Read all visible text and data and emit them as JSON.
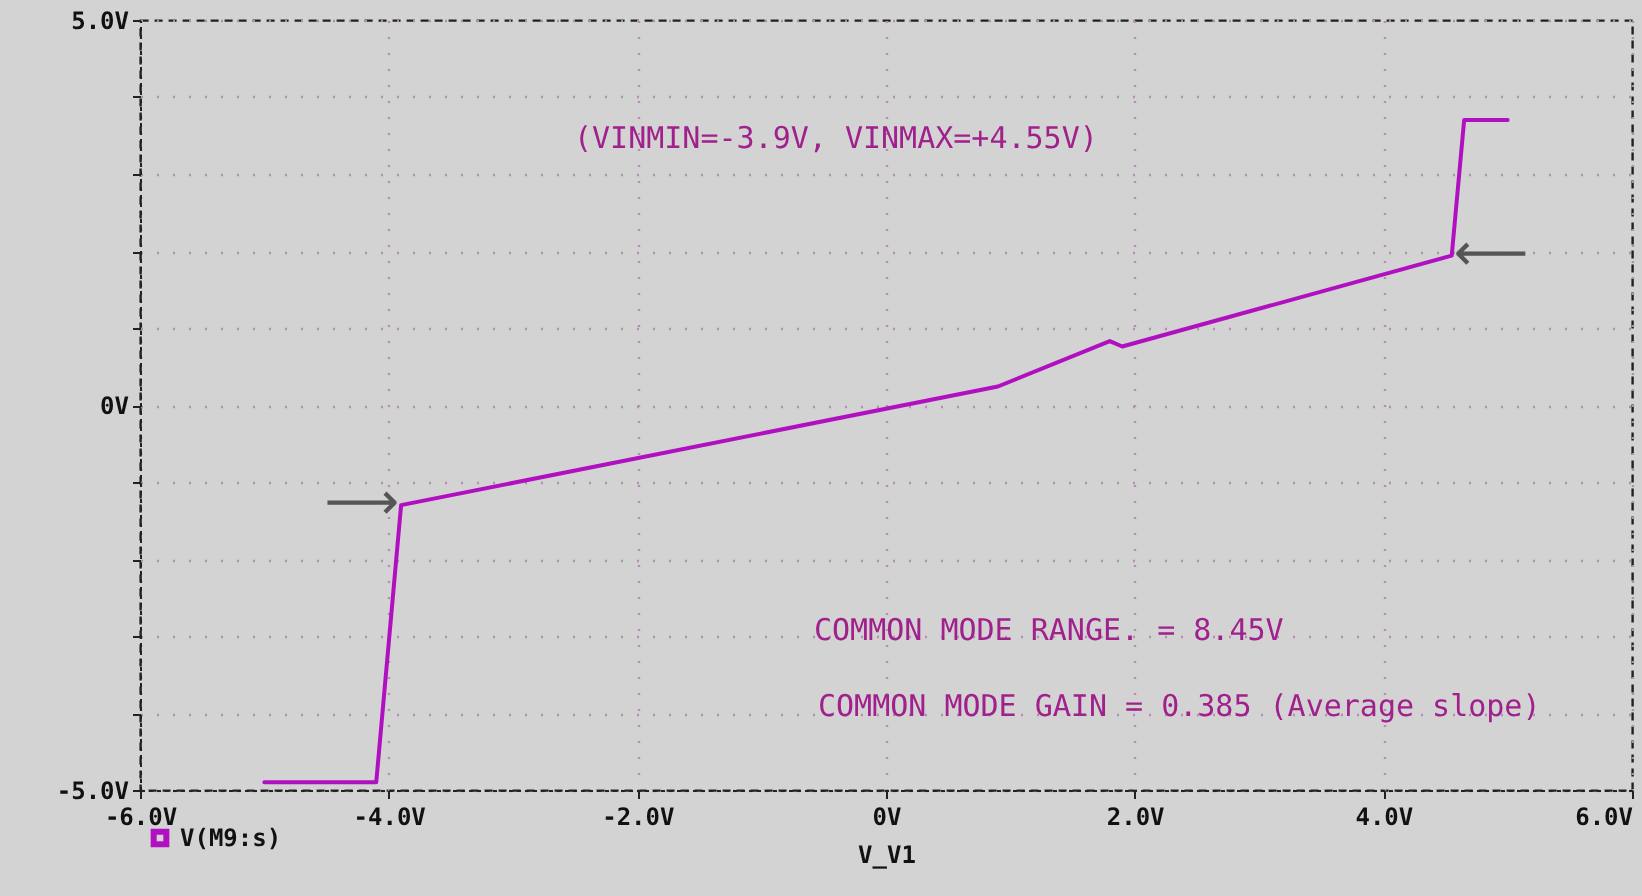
{
  "chart_data": {
    "type": "line",
    "xlabel": "V_V1",
    "x": [
      -5.0,
      -4.1,
      -3.9,
      0.9,
      1.8,
      1.9,
      4.55,
      4.65,
      5.0
    ],
    "series": [
      {
        "name": "V(M9:s)",
        "color": "#b010c0",
        "values": [
          -4.9,
          -4.9,
          -1.3,
          0.24,
          0.83,
          0.76,
          1.94,
          3.7,
          3.7
        ]
      }
    ],
    "xlim": [
      -6,
      6
    ],
    "xticks": [
      {
        "value": -6,
        "label": "-6.0V"
      },
      {
        "value": -4,
        "label": "-4.0V"
      },
      {
        "value": -2,
        "label": "-2.0V"
      },
      {
        "value": 0,
        "label": "0V"
      },
      {
        "value": 2,
        "label": "2.0V"
      },
      {
        "value": 4,
        "label": "4.0V"
      },
      {
        "value": 6,
        "label": "6.0V"
      }
    ],
    "ylim": [
      -5,
      5
    ],
    "yticks": [
      {
        "value": -5,
        "label": "-5.0V"
      },
      {
        "value": -4,
        "label": null
      },
      {
        "value": -3,
        "label": null
      },
      {
        "value": -2,
        "label": null
      },
      {
        "value": -1,
        "label": null
      },
      {
        "value": 0,
        "label": "0V"
      },
      {
        "value": 1,
        "label": null
      },
      {
        "value": 2,
        "label": null
      },
      {
        "value": 3,
        "label": null
      },
      {
        "value": 4,
        "label": null
      },
      {
        "value": 5,
        "label": "5.0V"
      }
    ],
    "grid": true,
    "legend": "bottom left",
    "annotations": [
      {
        "text": "⟶",
        "x": -3.9,
        "y": -1.3
      },
      {
        "text": "⟵",
        "x": 4.55,
        "y": 1.94
      },
      "(VINMIN=-3.9V,  VINMAX=+4.55V)",
      "COMMON MODE RANGE. =  8.45V",
      "COMMON MODE GAIN = 0.385 (Average slope)"
    ]
  }
}
